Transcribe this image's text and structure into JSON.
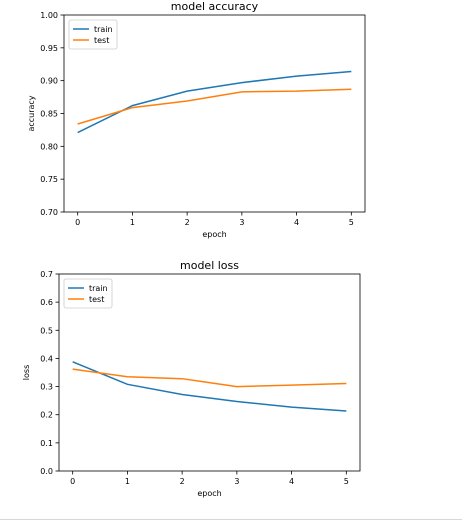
{
  "colors": {
    "train": "#1f77b4",
    "test": "#ff7f0e",
    "axis": "#000000",
    "background": "#ffffff"
  },
  "chart_data": [
    {
      "type": "line",
      "title": "model accuracy",
      "xlabel": "epoch",
      "ylabel": "accuracy",
      "x": [
        0,
        1,
        2,
        3,
        4,
        5
      ],
      "xlim": [
        -0.25,
        5.25
      ],
      "ylim": [
        0.7,
        1.0
      ],
      "xticks": [
        "0",
        "1",
        "2",
        "3",
        "4",
        "5"
      ],
      "yticks": [
        "0.70",
        "0.75",
        "0.80",
        "0.85",
        "0.90",
        "0.95",
        "1.00"
      ],
      "grid": false,
      "legend_position": "upper-left",
      "series": [
        {
          "name": "train",
          "values": [
            0.821,
            0.862,
            0.884,
            0.897,
            0.907,
            0.914
          ]
        },
        {
          "name": "test",
          "values": [
            0.834,
            0.859,
            0.869,
            0.883,
            0.884,
            0.887
          ]
        }
      ]
    },
    {
      "type": "line",
      "title": "model loss",
      "xlabel": "epoch",
      "ylabel": "loss",
      "x": [
        0,
        1,
        2,
        3,
        4,
        5
      ],
      "xlim": [
        -0.25,
        5.25
      ],
      "ylim": [
        0.0,
        0.7
      ],
      "xticks": [
        "0",
        "1",
        "2",
        "3",
        "4",
        "5"
      ],
      "yticks": [
        "0.0",
        "0.1",
        "0.2",
        "0.3",
        "0.4",
        "0.5",
        "0.6",
        "0.7"
      ],
      "grid": false,
      "legend_position": "upper-left",
      "series": [
        {
          "name": "train",
          "values": [
            0.388,
            0.308,
            0.272,
            0.247,
            0.227,
            0.213
          ]
        },
        {
          "name": "test",
          "values": [
            0.362,
            0.335,
            0.328,
            0.3,
            0.305,
            0.311
          ]
        }
      ]
    }
  ]
}
